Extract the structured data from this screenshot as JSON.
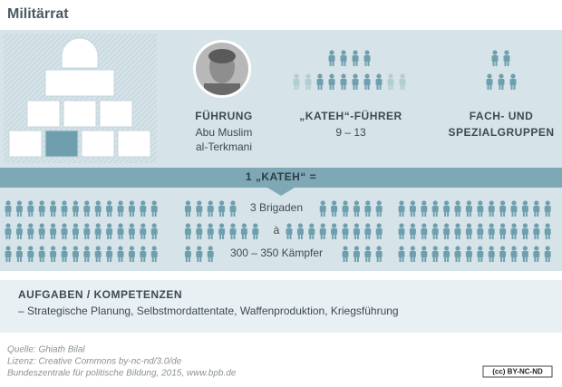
{
  "title": "Militärrat",
  "leadership": {
    "heading": "FÜHRUNG",
    "name_line1": "Abu Muslim",
    "name_line2": "al-Terkmani"
  },
  "kateh_leaders": {
    "heading": "„KATEH“-FÜHRER",
    "count": "9 – 13"
  },
  "special_groups": {
    "heading_line1": "FACH- UND",
    "heading_line2": "SPEZIALGRUPPEN"
  },
  "kateh_definition": {
    "heading": "1 „KATEH“ =",
    "line1": "3 Brigaden",
    "line2": "à",
    "line3": "300 – 350 Kämpfer"
  },
  "tasks": {
    "heading": "AUFGABEN / KOMPETENZEN",
    "text": "– Strategische Planung, Selbstmordattentate, Waffenproduktion, Kriegsführung"
  },
  "footer": {
    "source": "Quelle: Ghiath Bilal",
    "license": "Lizenz: Creative Commons by-nc-nd/3.0/de",
    "publisher": "Bundeszentrale für politische Bildung, 2015, www.bpb.de",
    "badge": "(cc) BY-NC-ND"
  }
}
